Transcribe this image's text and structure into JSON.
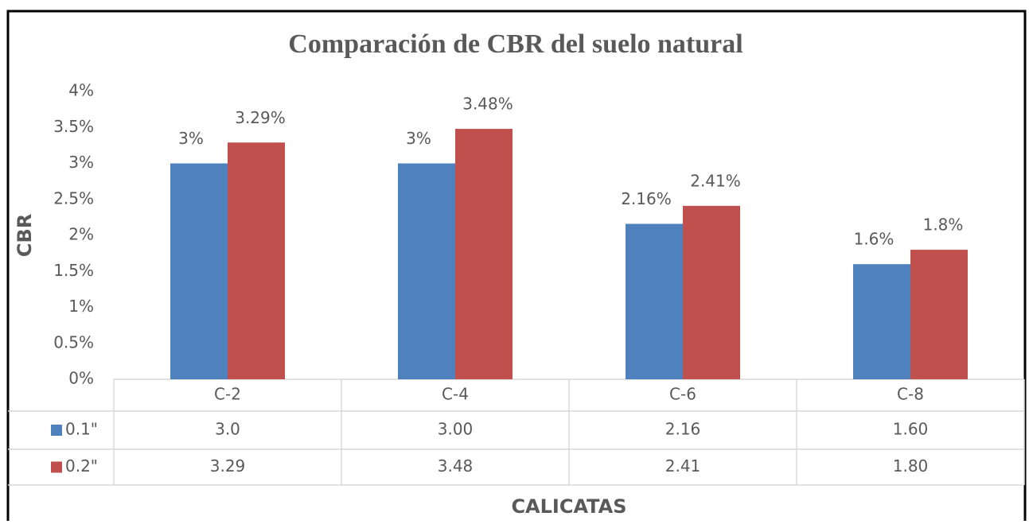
{
  "chart_data": {
    "type": "bar",
    "title": "Comparación de CBR del suelo natural",
    "y_label": "CBR",
    "x_label": "CALICATAS",
    "categories": [
      "C-2",
      "C-4",
      "C-6",
      "C-8"
    ],
    "series": [
      {
        "name": "0.1\"",
        "color": "#4f81bd",
        "values": [
          3,
          3,
          2.16,
          1.6
        ],
        "value_labels": [
          "3%",
          "3%",
          "2.16%",
          "1.6%"
        ],
        "table_labels": [
          "3.0",
          "3.00",
          "2.16",
          "1.60"
        ]
      },
      {
        "name": "0.2\"",
        "color": "#c0504d",
        "values": [
          3.29,
          3.48,
          2.41,
          1.8
        ],
        "value_labels": [
          "3.29%",
          "3.48%",
          "2.41%",
          "1.8%"
        ],
        "table_labels": [
          "3.29",
          "3.48",
          "2.41",
          "1.80"
        ]
      }
    ],
    "ylim": [
      0,
      4
    ],
    "yticks": [
      {
        "value": 0,
        "label": "0%"
      },
      {
        "value": 0.5,
        "label": "0.5%"
      },
      {
        "value": 1,
        "label": "1%"
      },
      {
        "value": 1.5,
        "label": "1.5%"
      },
      {
        "value": 2,
        "label": "2%"
      },
      {
        "value": 2.5,
        "label": "2.5%"
      },
      {
        "value": 3,
        "label": "3%"
      },
      {
        "value": 3.5,
        "label": "3.5%"
      },
      {
        "value": 4,
        "label": "4%"
      }
    ],
    "grid": false
  }
}
